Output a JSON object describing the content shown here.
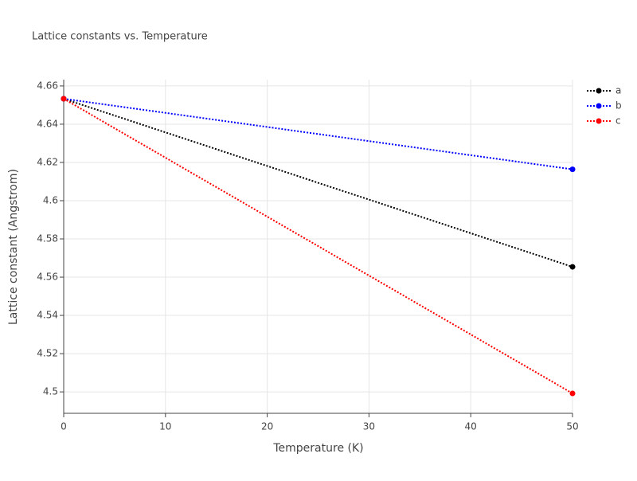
{
  "chart_data": {
    "type": "line",
    "title": "Lattice constants vs. Temperature",
    "x_label": "Temperature (K)",
    "y_label": "Lattice constant (Angstrom)",
    "x": [
      0,
      50
    ],
    "series": [
      {
        "name": "a",
        "color": "#000000",
        "values": [
          4.6533,
          4.5654
        ]
      },
      {
        "name": "b",
        "color": "#0000ff",
        "values": [
          4.6533,
          4.6164
        ]
      },
      {
        "name": "c",
        "color": "#ff0000",
        "values": [
          4.6533,
          4.4992
        ]
      }
    ],
    "xlim": [
      0,
      50
    ],
    "xticks": [
      0,
      10,
      20,
      30,
      40,
      50
    ],
    "ylim": [
      4.4888,
      4.6633
    ],
    "yticks": [
      4.5,
      4.52,
      4.54,
      4.56,
      4.58,
      4.6,
      4.62,
      4.64,
      4.66
    ],
    "grid": true,
    "line_style": "dotted",
    "legend": "right"
  }
}
